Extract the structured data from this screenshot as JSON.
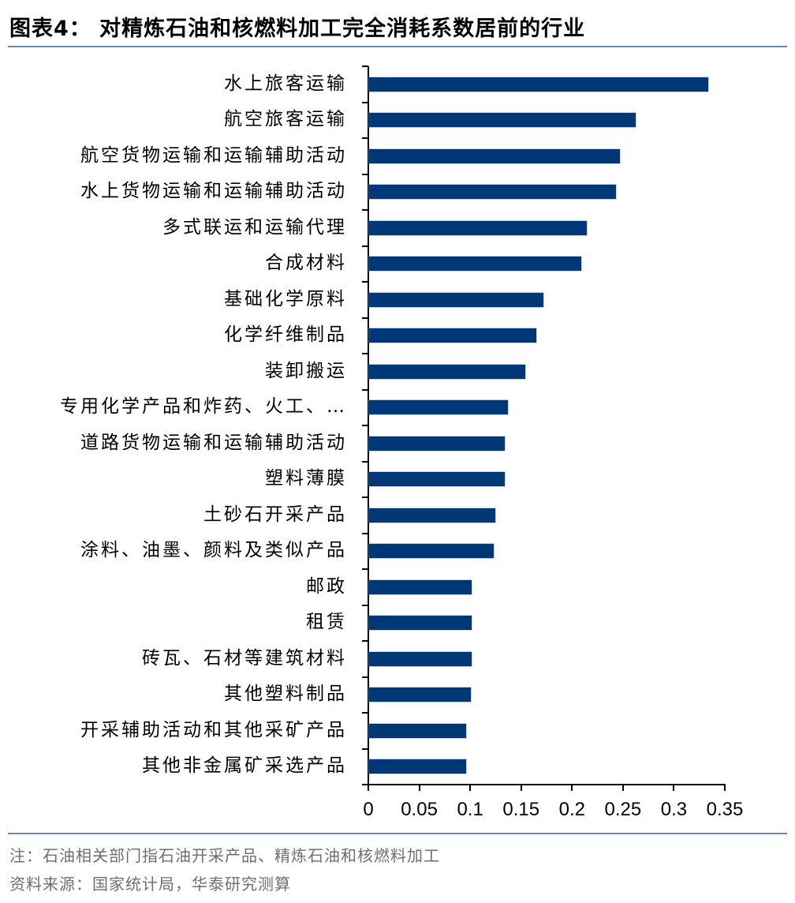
{
  "header": {
    "title": "图表4：  对精炼石油和核燃料加工完全消耗系数居前的行业"
  },
  "footer": {
    "note": "注：石油相关部门指石油开采产品、精炼石油和核燃料加工",
    "source": "资料来源：国家统计局，华泰研究测算"
  },
  "colors": {
    "bar": "#003777",
    "rule": "#6a89b3",
    "note_text": "#6f6f6f"
  },
  "chart_data": {
    "type": "bar",
    "orientation": "horizontal",
    "title": "对精炼石油和核燃料加工完全消耗系数居前的行业",
    "xlabel": "",
    "ylabel": "",
    "xlim": [
      0,
      0.35
    ],
    "xticks": [
      "0",
      "0.05",
      "0.1",
      "0.15",
      "0.2",
      "0.25",
      "0.3",
      "0.35"
    ],
    "grid": false,
    "legend": null,
    "categories": [
      "水上旅客运输",
      "航空旅客运输",
      "航空货物运输和运输辅助活动",
      "水上货物运输和运输辅助活动",
      "多式联运和运输代理",
      "合成材料",
      "基础化学原料",
      "化学纤维制品",
      "装卸搬运",
      "专用化学产品和炸药、火工、…",
      "道路货物运输和运输辅助活动",
      "塑料薄膜",
      "土砂石开采产品",
      "涂料、油墨、颜料及类似产品",
      "邮政",
      "租赁",
      "砖瓦、石材等建筑材料",
      "其他塑料制品",
      "开采辅助活动和其他采矿产品",
      "其他非金属矿采选产品"
    ],
    "values": [
      0.333,
      0.262,
      0.246,
      0.242,
      0.214,
      0.208,
      0.171,
      0.164,
      0.153,
      0.136,
      0.133,
      0.133,
      0.124,
      0.122,
      0.101,
      0.101,
      0.101,
      0.1,
      0.095,
      0.095
    ]
  }
}
